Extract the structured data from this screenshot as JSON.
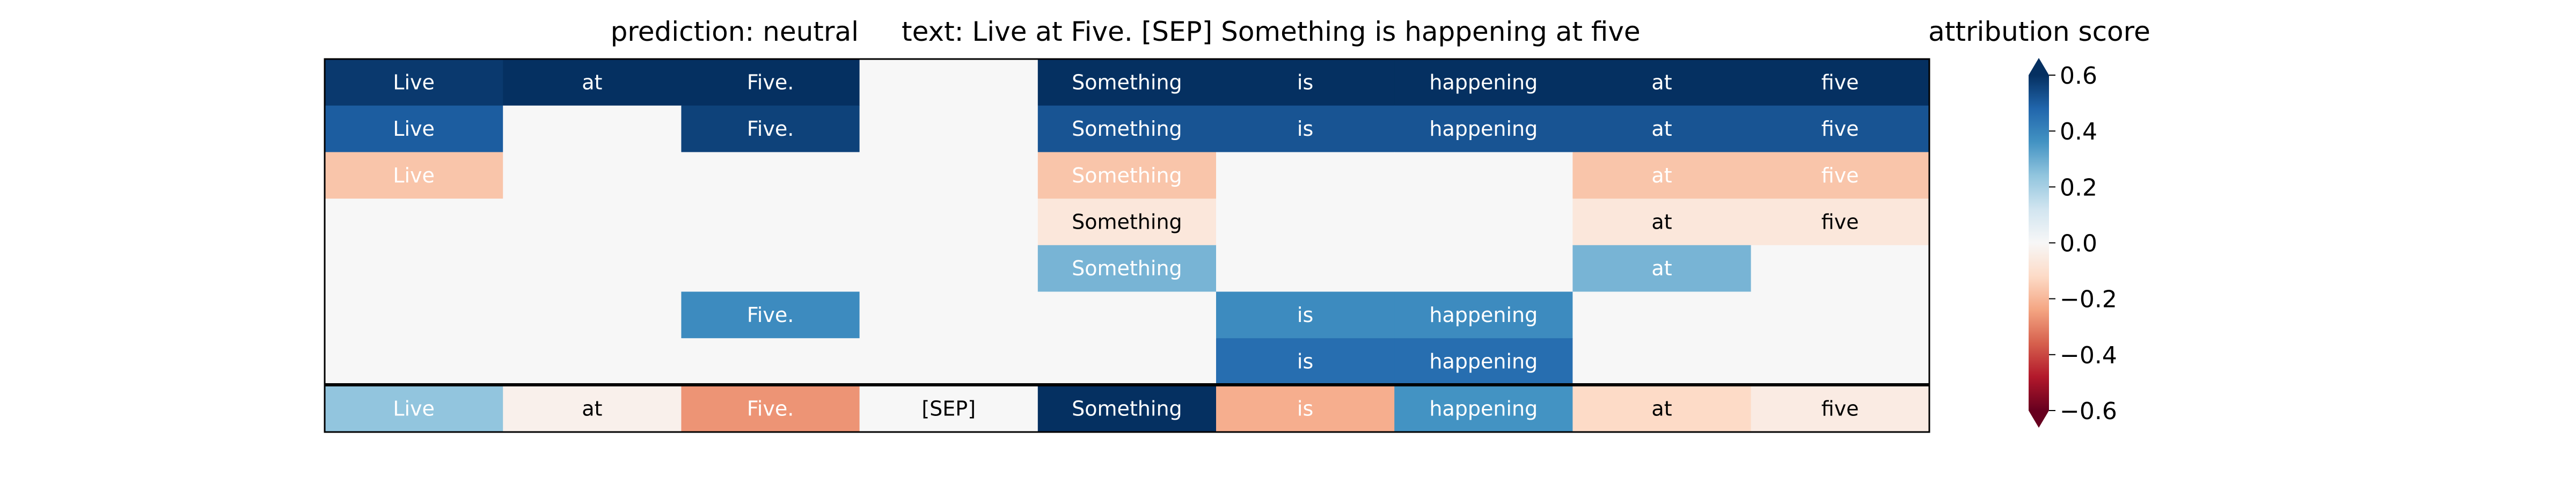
{
  "chart_data": {
    "type": "heatmap",
    "title_prediction": "prediction:  neutral",
    "title_text": "text:  Live at Five. [SEP] Something is happening at five",
    "columns": [
      "Live",
      "at",
      "Five.",
      "[SEP]",
      "Something",
      "is",
      "happening",
      "at",
      "five"
    ],
    "rows": [
      {
        "tokens": [
          "Live",
          "at",
          "Five.",
          "",
          "Something",
          "is",
          "happening",
          "at",
          "five"
        ],
        "values": [
          0.58,
          0.6,
          0.6,
          0.0,
          0.6,
          0.6,
          0.6,
          0.6,
          0.6
        ]
      },
      {
        "tokens": [
          "Live",
          "",
          "Five.",
          "",
          "Something",
          "is",
          "happening",
          "at",
          "five"
        ],
        "values": [
          0.5,
          0.0,
          0.56,
          0.0,
          0.52,
          0.52,
          0.52,
          0.52,
          0.52
        ]
      },
      {
        "tokens": [
          "Live",
          "",
          "",
          "",
          "Something",
          "",
          "",
          "at",
          "five"
        ],
        "values": [
          -0.17,
          0.0,
          0.0,
          0.0,
          -0.17,
          0.0,
          0.0,
          -0.17,
          -0.17
        ]
      },
      {
        "tokens": [
          "",
          "",
          "",
          "",
          "Something",
          "",
          "",
          "at",
          "five"
        ],
        "values": [
          0.0,
          0.0,
          0.0,
          0.0,
          -0.07,
          0.0,
          0.0,
          -0.07,
          -0.07
        ]
      },
      {
        "tokens": [
          "",
          "",
          "",
          "",
          "Something",
          "",
          "",
          "at",
          ""
        ],
        "values": [
          0.0,
          0.0,
          0.0,
          0.0,
          0.28,
          0.0,
          0.0,
          0.28,
          0.0
        ]
      },
      {
        "tokens": [
          "",
          "",
          "Five.",
          "",
          "",
          "is",
          "happening",
          "",
          ""
        ],
        "values": [
          0.0,
          0.0,
          0.38,
          0.0,
          0.0,
          0.38,
          0.38,
          0.0,
          0.0
        ]
      },
      {
        "tokens": [
          "",
          "",
          "",
          "",
          "",
          "is",
          "happening",
          "",
          ""
        ],
        "values": [
          0.0,
          0.0,
          0.0,
          0.0,
          0.0,
          0.46,
          0.46,
          0.0,
          0.0
        ]
      }
    ],
    "summary_row": {
      "tokens": [
        "Live",
        "at",
        "Five.",
        "[SEP]",
        "Something",
        "is",
        "happening",
        "at",
        "five"
      ],
      "values": [
        0.24,
        -0.03,
        -0.27,
        0.0,
        0.62,
        -0.22,
        0.36,
        -0.12,
        -0.05
      ]
    },
    "colorbar": {
      "label": "attribution score",
      "vmin": -0.6,
      "vmax": 0.6,
      "ticks": [
        {
          "value": 0.6,
          "label": "0.6"
        },
        {
          "value": 0.4,
          "label": "0.4"
        },
        {
          "value": 0.2,
          "label": "0.2"
        },
        {
          "value": 0.0,
          "label": "0.0"
        },
        {
          "value": -0.2,
          "label": "−0.2"
        },
        {
          "value": -0.4,
          "label": "−0.4"
        },
        {
          "value": -0.6,
          "label": "−0.6"
        }
      ],
      "colormap": "RdBu"
    }
  }
}
